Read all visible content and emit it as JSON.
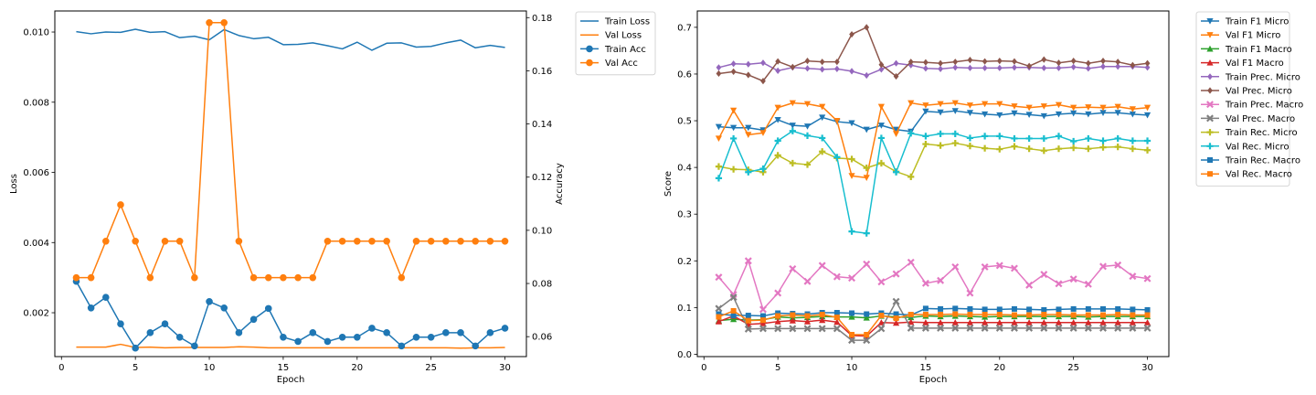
{
  "chart_data": [
    {
      "type": "line",
      "xlabel": "Epoch",
      "ylabel": "Loss",
      "y2label": "Accuracy",
      "xlim": [
        -0.45,
        31.45
      ],
      "ylim": [
        0.00075,
        0.0106
      ],
      "y2lim": [
        0.0525,
        0.1825
      ],
      "xticks": [
        0,
        5,
        10,
        15,
        20,
        25,
        30
      ],
      "yticks": [
        0.002,
        0.004,
        0.006,
        0.008,
        0.01
      ],
      "ytick_labels": [
        "0.002",
        "0.004",
        "0.006",
        "0.008",
        "0.010"
      ],
      "y2ticks": [
        0.06,
        0.08,
        0.1,
        0.12,
        0.14,
        0.16,
        0.18
      ],
      "y2tick_labels": [
        "0.06",
        "0.08",
        "0.10",
        "0.12",
        "0.14",
        "0.16",
        "0.18"
      ],
      "legend": "outside-top-right",
      "x": [
        1,
        2,
        3,
        4,
        5,
        6,
        7,
        8,
        9,
        10,
        11,
        12,
        13,
        14,
        15,
        16,
        17,
        18,
        19,
        20,
        21,
        22,
        23,
        24,
        25,
        26,
        27,
        28,
        29,
        30
      ],
      "series": [
        {
          "name": "Train Loss",
          "axis": "left",
          "color": "#1f77b4",
          "marker": "none",
          "values": [
            0.01001,
            0.00995,
            0.01,
            0.00999,
            0.01008,
            0.00999,
            0.01001,
            0.00984,
            0.00988,
            0.00978,
            0.01007,
            0.0099,
            0.00981,
            0.00985,
            0.00964,
            0.00965,
            0.00969,
            0.00961,
            0.00952,
            0.00971,
            0.00948,
            0.00968,
            0.00969,
            0.00957,
            0.00959,
            0.00969,
            0.00977,
            0.00955,
            0.00962,
            0.00956
          ]
        },
        {
          "name": "Val Loss",
          "axis": "left",
          "color": "#ff7f0e",
          "marker": "none",
          "values": [
            0.00102,
            0.00102,
            0.00102,
            0.0011,
            0.00101,
            0.00102,
            0.001,
            0.00101,
            0.00101,
            0.00101,
            0.00101,
            0.00103,
            0.00102,
            0.001,
            0.001,
            0.001,
            0.001,
            0.001,
            0.001,
            0.001,
            0.001,
            0.001,
            0.001,
            0.001,
            0.001,
            0.001,
            0.00099,
            0.001,
            0.001,
            0.00101
          ]
        },
        {
          "name": "Train Acc",
          "axis": "right",
          "color": "#1f77b4",
          "marker": "circle",
          "values": [
            0.0808,
            0.0708,
            0.0748,
            0.0648,
            0.0557,
            0.0615,
            0.0648,
            0.0598,
            0.0565,
            0.0732,
            0.0708,
            0.0615,
            0.0665,
            0.0706,
            0.0598,
            0.0582,
            0.0615,
            0.0582,
            0.0598,
            0.0598,
            0.0632,
            0.0615,
            0.0565,
            0.0598,
            0.0598,
            0.0615,
            0.0615,
            0.0565,
            0.0615,
            0.0632
          ]
        },
        {
          "name": "Val Acc",
          "axis": "right",
          "color": "#ff7f0e",
          "marker": "circle",
          "values": [
            0.0822,
            0.0822,
            0.0959,
            0.1096,
            0.0959,
            0.0822,
            0.0959,
            0.0959,
            0.0822,
            0.1781,
            0.1781,
            0.0959,
            0.0822,
            0.0822,
            0.0822,
            0.0822,
            0.0822,
            0.0959,
            0.0959,
            0.0959,
            0.0959,
            0.0959,
            0.0822,
            0.0959,
            0.0959,
            0.0959,
            0.0959,
            0.0959,
            0.0959,
            0.0959
          ]
        }
      ]
    },
    {
      "type": "line",
      "xlabel": "Epoch",
      "ylabel": "Score",
      "xlim": [
        -0.45,
        31.45
      ],
      "ylim": [
        -0.005,
        0.735
      ],
      "xticks": [
        0,
        5,
        10,
        15,
        20,
        25,
        30
      ],
      "yticks": [
        0.0,
        0.1,
        0.2,
        0.3,
        0.4,
        0.5,
        0.6,
        0.7
      ],
      "ytick_labels": [
        "0.0",
        "0.1",
        "0.2",
        "0.3",
        "0.4",
        "0.5",
        "0.6",
        "0.7"
      ],
      "legend": "outside-top-right",
      "x": [
        1,
        2,
        3,
        4,
        5,
        6,
        7,
        8,
        9,
        10,
        11,
        12,
        13,
        14,
        15,
        16,
        17,
        18,
        19,
        20,
        21,
        22,
        23,
        24,
        25,
        26,
        27,
        28,
        29,
        30
      ],
      "series": [
        {
          "name": "Train F1 Micro",
          "color": "#1f77b4",
          "marker": "triangle_down",
          "values": [
            0.487,
            0.485,
            0.485,
            0.48,
            0.502,
            0.49,
            0.488,
            0.507,
            0.498,
            0.495,
            0.481,
            0.49,
            0.481,
            0.477,
            0.52,
            0.518,
            0.521,
            0.517,
            0.514,
            0.512,
            0.516,
            0.513,
            0.51,
            0.514,
            0.516,
            0.514,
            0.517,
            0.517,
            0.514,
            0.512
          ]
        },
        {
          "name": "Val F1 Micro",
          "color": "#ff7f0e",
          "marker": "triangle_down",
          "values": [
            0.462,
            0.522,
            0.47,
            0.474,
            0.528,
            0.538,
            0.536,
            0.53,
            0.5,
            0.382,
            0.378,
            0.53,
            0.472,
            0.538,
            0.533,
            0.536,
            0.538,
            0.533,
            0.536,
            0.536,
            0.531,
            0.528,
            0.531,
            0.534,
            0.528,
            0.529,
            0.528,
            0.53,
            0.525,
            0.528
          ]
        },
        {
          "name": "Train F1 Macro",
          "color": "#2ca02c",
          "marker": "triangle_up",
          "values": [
            0.072,
            0.075,
            0.073,
            0.074,
            0.08,
            0.078,
            0.079,
            0.081,
            0.08,
            0.08,
            0.078,
            0.082,
            0.08,
            0.079,
            0.082,
            0.081,
            0.082,
            0.081,
            0.08,
            0.081,
            0.081,
            0.081,
            0.081,
            0.081,
            0.081,
            0.08,
            0.081,
            0.081,
            0.081,
            0.081
          ]
        },
        {
          "name": "Val F1 Macro",
          "color": "#d62728",
          "marker": "triangle_up",
          "values": [
            0.07,
            0.082,
            0.064,
            0.066,
            0.07,
            0.072,
            0.07,
            0.073,
            0.069,
            0.04,
            0.039,
            0.068,
            0.067,
            0.069,
            0.068,
            0.068,
            0.068,
            0.068,
            0.068,
            0.068,
            0.068,
            0.068,
            0.068,
            0.068,
            0.068,
            0.068,
            0.068,
            0.068,
            0.068,
            0.068
          ]
        },
        {
          "name": "Train Prec. Micro",
          "color": "#9467bd",
          "marker": "diamond",
          "values": [
            0.614,
            0.622,
            0.621,
            0.624,
            0.607,
            0.614,
            0.612,
            0.61,
            0.611,
            0.606,
            0.597,
            0.61,
            0.623,
            0.619,
            0.612,
            0.611,
            0.614,
            0.613,
            0.613,
            0.613,
            0.614,
            0.614,
            0.613,
            0.613,
            0.615,
            0.612,
            0.616,
            0.616,
            0.616,
            0.614
          ]
        },
        {
          "name": "Val Prec. Micro",
          "color": "#8c564b",
          "marker": "diamond",
          "values": [
            0.601,
            0.605,
            0.598,
            0.585,
            0.627,
            0.615,
            0.628,
            0.626,
            0.626,
            0.685,
            0.7,
            0.62,
            0.595,
            0.626,
            0.625,
            0.623,
            0.626,
            0.63,
            0.627,
            0.628,
            0.627,
            0.617,
            0.631,
            0.624,
            0.628,
            0.623,
            0.628,
            0.626,
            0.619,
            0.623
          ]
        },
        {
          "name": "Train Prec. Macro",
          "color": "#e377c2",
          "marker": "x",
          "values": [
            0.165,
            0.128,
            0.2,
            0.096,
            0.131,
            0.183,
            0.156,
            0.19,
            0.166,
            0.163,
            0.193,
            0.155,
            0.172,
            0.197,
            0.152,
            0.158,
            0.187,
            0.131,
            0.187,
            0.19,
            0.184,
            0.148,
            0.171,
            0.151,
            0.161,
            0.15,
            0.188,
            0.191,
            0.167,
            0.162
          ]
        },
        {
          "name": "Val Prec. Macro",
          "color": "#7f7f7f",
          "marker": "x",
          "values": [
            0.098,
            0.122,
            0.054,
            0.055,
            0.055,
            0.055,
            0.055,
            0.055,
            0.055,
            0.03,
            0.03,
            0.055,
            0.113,
            0.056,
            0.056,
            0.056,
            0.056,
            0.056,
            0.056,
            0.056,
            0.056,
            0.056,
            0.056,
            0.056,
            0.056,
            0.056,
            0.056,
            0.056,
            0.056,
            0.056
          ]
        },
        {
          "name": "Train Rec. Micro",
          "color": "#bcbd22",
          "marker": "plus",
          "values": [
            0.402,
            0.396,
            0.395,
            0.39,
            0.426,
            0.409,
            0.406,
            0.434,
            0.42,
            0.418,
            0.399,
            0.409,
            0.391,
            0.38,
            0.45,
            0.447,
            0.452,
            0.446,
            0.441,
            0.439,
            0.445,
            0.44,
            0.436,
            0.44,
            0.442,
            0.44,
            0.443,
            0.444,
            0.44,
            0.437
          ]
        },
        {
          "name": "Val Rec. Micro",
          "color": "#17becf",
          "marker": "plus",
          "values": [
            0.377,
            0.462,
            0.39,
            0.397,
            0.457,
            0.478,
            0.468,
            0.463,
            0.422,
            0.263,
            0.259,
            0.463,
            0.39,
            0.473,
            0.467,
            0.472,
            0.472,
            0.463,
            0.467,
            0.467,
            0.462,
            0.462,
            0.462,
            0.467,
            0.456,
            0.462,
            0.457,
            0.462,
            0.457,
            0.457
          ]
        },
        {
          "name": "Train Rec. Macro",
          "color": "#1f77b4",
          "marker": "square",
          "values": [
            0.086,
            0.083,
            0.083,
            0.082,
            0.088,
            0.087,
            0.086,
            0.089,
            0.089,
            0.088,
            0.086,
            0.088,
            0.086,
            0.084,
            0.098,
            0.097,
            0.098,
            0.097,
            0.096,
            0.096,
            0.097,
            0.096,
            0.095,
            0.096,
            0.097,
            0.097,
            0.097,
            0.097,
            0.096,
            0.095
          ]
        },
        {
          "name": "Val Rec. Macro",
          "color": "#ff7f0e",
          "marker": "square",
          "values": [
            0.08,
            0.093,
            0.072,
            0.073,
            0.082,
            0.084,
            0.082,
            0.085,
            0.079,
            0.042,
            0.042,
            0.083,
            0.077,
            0.085,
            0.085,
            0.085,
            0.086,
            0.085,
            0.085,
            0.085,
            0.084,
            0.084,
            0.085,
            0.085,
            0.084,
            0.084,
            0.084,
            0.085,
            0.084,
            0.084
          ]
        }
      ]
    }
  ]
}
